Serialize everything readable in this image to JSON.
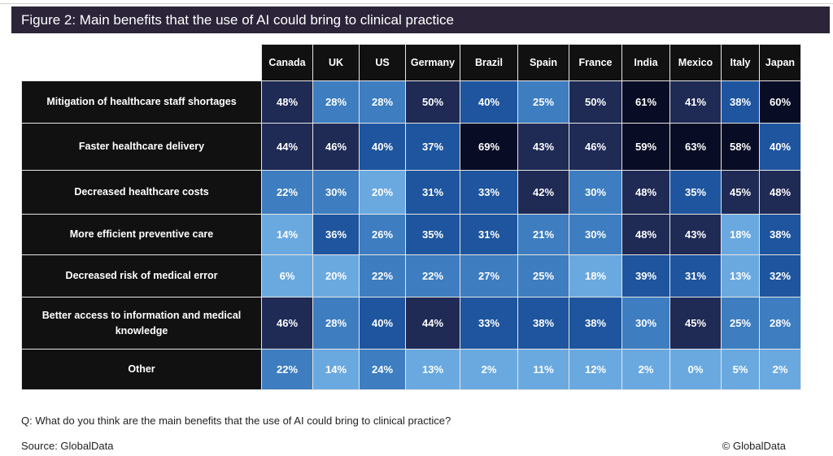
{
  "title": "Figure 2: Main benefits that the use of AI could bring to clinical practice",
  "question": "Q: What do you think are the main benefits that the use of AI could bring to clinical practice?",
  "source": "Source: GlobalData",
  "copyright": "© GlobalData",
  "color_scale": [
    {
      "max": 20,
      "color": "#6aa9e0"
    },
    {
      "max": 30,
      "color": "#3d7dc0"
    },
    {
      "max": 40,
      "color": "#1e559e"
    },
    {
      "max": 55,
      "color": "#1f2a55"
    },
    {
      "max": 100,
      "color": "#080c24"
    }
  ],
  "chart_data": {
    "type": "heatmap",
    "title": "Figure 2: Main benefits that the use of AI could bring to clinical practice",
    "unit": "%",
    "columns": [
      "Canada",
      "UK",
      "US",
      "Germany",
      "Brazil",
      "Spain",
      "France",
      "India",
      "Mexico",
      "Italy",
      "Japan"
    ],
    "rows": [
      {
        "label": "Mitigation of healthcare staff shortages",
        "values": [
          48,
          28,
          28,
          50,
          40,
          25,
          50,
          61,
          41,
          38,
          60
        ]
      },
      {
        "label": "Faster healthcare delivery",
        "values": [
          44,
          46,
          40,
          37,
          69,
          43,
          46,
          59,
          63,
          58,
          40
        ]
      },
      {
        "label": "Decreased healthcare costs",
        "values": [
          22,
          30,
          20,
          31,
          33,
          42,
          30,
          48,
          35,
          45,
          48
        ]
      },
      {
        "label": "More efficient preventive care",
        "values": [
          14,
          36,
          26,
          35,
          31,
          21,
          30,
          48,
          43,
          18,
          38
        ]
      },
      {
        "label": "Decreased risk of medical error",
        "values": [
          6,
          20,
          22,
          22,
          27,
          25,
          18,
          39,
          31,
          13,
          32
        ]
      },
      {
        "label": "Better access to information and medical knowledge",
        "values": [
          46,
          28,
          40,
          44,
          33,
          38,
          38,
          30,
          45,
          25,
          28
        ]
      },
      {
        "label": "Other",
        "values": [
          22,
          14,
          24,
          13,
          2,
          11,
          12,
          2,
          0,
          5,
          2
        ]
      }
    ]
  }
}
